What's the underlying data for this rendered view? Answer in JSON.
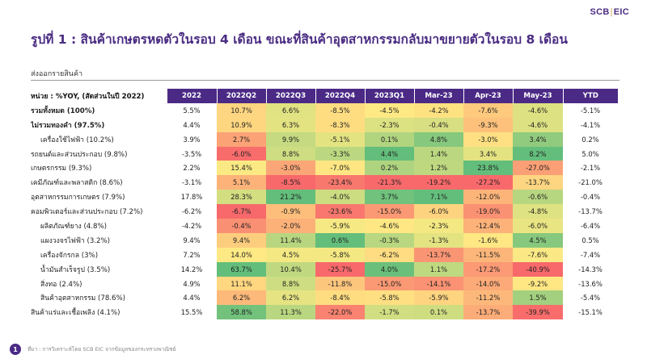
{
  "logo": {
    "left": "SCB",
    "sep": "|",
    "right": "EIC"
  },
  "page": {
    "title": "รูปที่ 1 : สินค้าเกษตรหดตัวในรอบ 4 เดือน ขณะที่สินค้าอุตสาหกรรมกลับมาขยายตัวในรอบ 8 เดือน",
    "subtitle": "ส่งออกรายสินค้า",
    "source": "ที่มา : การวิเคราะห์โดย SCB EIC จากข้อมูลของกระทรวงพาณิชย์",
    "page_number": "1"
  },
  "colors": {
    "header_bg": "#4b2a86",
    "title": "#4a2c82",
    "good": "#63be7b",
    "mid": "#ffeb84",
    "bad": "#f8696b"
  },
  "chart_data": {
    "type": "table",
    "title": "ส่งออกรายสินค้า",
    "row_header": "หน่วย : %YOY, (สัดส่วนในปี 2022)",
    "columns": [
      "2022",
      "2022Q2",
      "2022Q3",
      "2022Q4",
      "2023Q1",
      "Mar-23",
      "Apr-23",
      "May-23",
      "YTD"
    ],
    "heatmap_columns": [
      1,
      2,
      3,
      4,
      5,
      6,
      7
    ],
    "rows": [
      {
        "label": "รวมทั้งหมด (100%)",
        "style": "bold",
        "values": [
          "5.5%",
          "10.7%",
          "6.6%",
          "-8.5%",
          "-4.5%",
          "-4.2%",
          "-7.6%",
          "-4.6%",
          "-5.1%"
        ]
      },
      {
        "label": "ไม่รวมทองคำ (97.5%)",
        "style": "bold",
        "values": [
          "4.4%",
          "10.9%",
          "6.3%",
          "-8.3%",
          "-2.3%",
          "-0.4%",
          "-9.3%",
          "-4.6%",
          "-4.1%"
        ]
      },
      {
        "label": "เครื่องใช้ไฟฟ้า (10.2%)",
        "style": "indent",
        "values": [
          "3.9%",
          "2.7%",
          "9.9%",
          "-5.1%",
          "0.1%",
          "4.8%",
          "-3.0%",
          "3.4%",
          "0.2%"
        ]
      },
      {
        "label": "รถยนต์และส่วนประกอบ (9.8%)",
        "style": "normal",
        "values": [
          "-3.5%",
          "-6.0%",
          "8.8%",
          "-3.3%",
          "4.4%",
          "1.4%",
          "3.4%",
          "8.2%",
          "5.0%"
        ]
      },
      {
        "label": "เกษตรกรรม (9.3%)",
        "style": "normal",
        "values": [
          "2.2%",
          "15.4%",
          "-3.0%",
          "-7.0%",
          "0.2%",
          "1.2%",
          "23.8%",
          "-27.0%",
          "-2.1%"
        ]
      },
      {
        "label": "เคมีภัณฑ์และพลาสติก (8.6%)",
        "style": "normal",
        "values": [
          "-3.1%",
          "5.1%",
          "-8.5%",
          "-23.4%",
          "-21.3%",
          "-19.2%",
          "-27.2%",
          "-13.7%",
          "-21.0%"
        ]
      },
      {
        "label": "อุตสาหกรรมการเกษตร (7.9%)",
        "style": "normal",
        "values": [
          "17.8%",
          "28.3%",
          "21.2%",
          "-4.0%",
          "3.7%",
          "7.1%",
          "-12.0%",
          "-0.6%",
          "-0.4%"
        ]
      },
      {
        "label": "คอมพิวเตอร์และส่วนประกอบ (7.2%)",
        "style": "normal",
        "values": [
          "-6.2%",
          "-6.7%",
          "-0.9%",
          "-23.6%",
          "-15.0%",
          "-6.0%",
          "-19.0%",
          "-4.8%",
          "-13.7%"
        ]
      },
      {
        "label": "ผลิตภัณฑ์ยาง (4.8%)",
        "style": "indent",
        "values": [
          "-4.2%",
          "-0.4%",
          "-2.0%",
          "-5.9%",
          "-4.6%",
          "-2.3%",
          "-12.4%",
          "-6.0%",
          "-6.4%"
        ]
      },
      {
        "label": "แผงวงจรไฟฟ้า (3.2%)",
        "style": "indent",
        "values": [
          "9.4%",
          "9.4%",
          "11.4%",
          "0.6%",
          "-0.3%",
          "-1.3%",
          "-1.6%",
          "4.5%",
          "0.5%"
        ]
      },
      {
        "label": "เครื่องจักรกล (3%)",
        "style": "indent",
        "values": [
          "7.2%",
          "14.0%",
          "4.5%",
          "-5.8%",
          "-6.2%",
          "-13.7%",
          "-11.5%",
          "-7.6%",
          "-7.4%"
        ]
      },
      {
        "label": "น้ำมันสำเร็จรูป (3.5%)",
        "style": "indent",
        "values": [
          "14.2%",
          "63.7%",
          "10.4%",
          "-25.7%",
          "4.0%",
          "1.1%",
          "-17.2%",
          "-40.9%",
          "-14.3%"
        ]
      },
      {
        "label": "สิ่งทอ (2.4%)",
        "style": "indent",
        "values": [
          "4.9%",
          "11.1%",
          "8.8%",
          "-11.8%",
          "-15.0%",
          "-14.1%",
          "-14.0%",
          "-9.2%",
          "-13.6%"
        ]
      },
      {
        "label": "สินค้าอุตสาหกรรม (78.6%)",
        "style": "indent",
        "values": [
          "4.4%",
          "6.2%",
          "6.2%",
          "-8.4%",
          "-5.8%",
          "-5.9%",
          "-11.2%",
          "1.5%",
          "-5.4%"
        ]
      },
      {
        "label": "สินค้าแร่และเชื้อเพลิง (4.1%)",
        "style": "normal",
        "values": [
          "15.5%",
          "58.8%",
          "11.3%",
          "-22.0%",
          "-1.7%",
          "0.1%",
          "-13.7%",
          "-39.9%",
          "-15.1%"
        ]
      }
    ]
  }
}
